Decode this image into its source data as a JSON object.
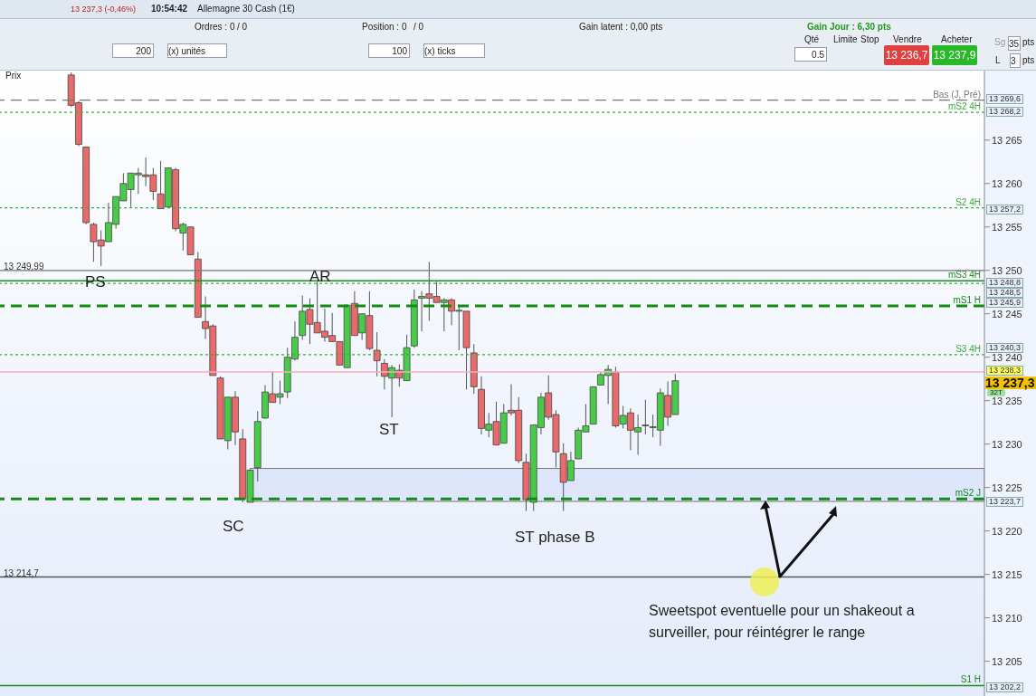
{
  "chart_data": {
    "type": "candlestick",
    "title": "Allemagne 30 Cash (1€)",
    "subtitle": "13 237,3 (-0,46%)",
    "categories": [
      null,
      null,
      null,
      null,
      null,
      null,
      null,
      null,
      null,
      null,
      null,
      null,
      null,
      null,
      null,
      null,
      null,
      null,
      null,
      null,
      null,
      null,
      null,
      null,
      null,
      null,
      null,
      null,
      null,
      null,
      null,
      null,
      null,
      null,
      null,
      null,
      null,
      null,
      null,
      null,
      null,
      null,
      null,
      null,
      null,
      null,
      null,
      null,
      null,
      null,
      null,
      null,
      null,
      null,
      null,
      null,
      null,
      null,
      null,
      null,
      null,
      null,
      null,
      null,
      null,
      null,
      null,
      null,
      null,
      null,
      null,
      null,
      null,
      null,
      null,
      null,
      null,
      null,
      null,
      null,
      null,
      null,
      null,
      null,
      null,
      null,
      null,
      null,
      null,
      null,
      null,
      null,
      null,
      null,
      null,
      null,
      null,
      null,
      null,
      null,
      null,
      null,
      null,
      null,
      null,
      null,
      null,
      null,
      null,
      null,
      null,
      null,
      null,
      null,
      null,
      null,
      null,
      null,
      null,
      null,
      null,
      null,
      null,
      null,
      null,
      null,
      null,
      null,
      null,
      null,
      null,
      null
    ],
    "ohlc": [
      null,
      null,
      null,
      null,
      null,
      null,
      null,
      null,
      null,
      [
        13272.5,
        13272.8,
        13268.8,
        13269.0
      ],
      [
        13269.3,
        13269.5,
        13264.3,
        13264.5
      ],
      [
        13264.2,
        13264.2,
        13255.3,
        13255.5
      ],
      [
        13255.3,
        13255.5,
        13251.0,
        13253.3
      ],
      [
        13253.5,
        13254.6,
        13250.5,
        13252.8
      ],
      [
        13253.3,
        13257.8,
        13253.3,
        13255.5
      ],
      [
        13255.3,
        13258.5,
        13254.8,
        13258.5
      ],
      [
        13258.0,
        13261.2,
        13258.0,
        13260.0
      ],
      [
        13259.3,
        13261.2,
        13257.3,
        13261.2
      ],
      [
        13261.0,
        13261.8,
        13258.8,
        13261.2
      ],
      [
        13261.0,
        13263.0,
        13259.7,
        13260.8
      ],
      [
        13261.0,
        13261.8,
        13258.1,
        13259.1
      ],
      [
        13258.8,
        13262.6,
        13257.1,
        13257.1
      ],
      [
        13257.3,
        13261.8,
        13257.3,
        13261.8
      ],
      [
        13261.6,
        13261.8,
        13254.5,
        13254.8
      ],
      [
        13254.3,
        13255.5,
        13252.3,
        13255.3
      ],
      [
        13255.0,
        13255.0,
        13251.8,
        13251.8
      ],
      [
        13251.3,
        13252.1,
        13244.6,
        13244.6
      ],
      [
        13244.1,
        13247.0,
        13242.1,
        13243.3
      ],
      [
        13243.6,
        13243.8,
        13237.9,
        13237.9
      ],
      [
        13237.6,
        13237.8,
        13230.6,
        13230.6
      ],
      [
        13230.4,
        13235.4,
        13229.4,
        13235.4
      ],
      [
        13235.4,
        13236.1,
        13229.9,
        13231.4
      ],
      [
        13230.6,
        13231.7,
        13223.3,
        13223.7
      ],
      [
        13223.3,
        13227.0,
        13223.3,
        13227.0
      ],
      [
        13227.3,
        13233.8,
        13225.7,
        13232.6
      ],
      [
        13233.0,
        13236.8,
        13232.9,
        13236.0
      ],
      [
        13235.8,
        13238.4,
        13234.8,
        13234.8
      ],
      [
        13235.4,
        13237.3,
        13234.6,
        13235.8
      ],
      [
        13236.0,
        13241.1,
        13235.3,
        13240.0
      ],
      [
        13239.8,
        13244.1,
        13239.6,
        13242.3
      ],
      [
        13242.5,
        13247.1,
        13242.0,
        13245.3
      ],
      [
        13245.5,
        13246.8,
        13241.5,
        13243.8
      ],
      [
        13244.0,
        13248.7,
        13242.8,
        13242.8
      ],
      [
        13243.0,
        13245.6,
        13241.8,
        13242.3
      ],
      [
        13242.5,
        13245.1,
        13241.8,
        13241.8
      ],
      [
        13241.8,
        13241.8,
        13239.1,
        13239.1
      ],
      [
        13238.8,
        13246.0,
        13238.8,
        13246.0
      ],
      [
        13246.2,
        13247.6,
        13242.5,
        13242.5
      ],
      [
        13242.8,
        13245.0,
        13242.0,
        13245.0
      ],
      [
        13244.8,
        13247.6,
        13240.8,
        13241.0
      ],
      [
        13240.8,
        13242.9,
        13237.8,
        13239.6
      ],
      [
        13239.3,
        13239.8,
        13236.3,
        13237.8
      ],
      [
        13237.6,
        13239.1,
        13233.1,
        13238.8
      ],
      [
        13238.5,
        13239.2,
        13236.6,
        13237.6
      ],
      [
        13237.3,
        13242.6,
        13237.3,
        13241.1
      ],
      [
        13241.3,
        13247.8,
        13241.1,
        13246.6
      ],
      [
        13246.8,
        13247.6,
        13243.0,
        13247.0
      ],
      [
        13247.3,
        13251.0,
        13244.2,
        13246.8
      ],
      [
        13247.0,
        13248.7,
        13246.3,
        13246.3
      ],
      [
        13246.3,
        13246.8,
        13243.0,
        13246.6
      ],
      [
        13246.6,
        13246.8,
        13243.7,
        13245.3
      ],
      [
        13245.3,
        13246.0,
        13240.8,
        13245.3
      ],
      [
        13245.3,
        13245.3,
        13236.3,
        13241.1
      ],
      [
        13240.5,
        13241.5,
        13235.8,
        13236.6
      ],
      [
        13236.3,
        13237.8,
        13231.1,
        13231.8
      ],
      [
        13231.6,
        13233.6,
        13230.8,
        13232.3
      ],
      [
        13232.6,
        13234.9,
        13229.9,
        13229.9
      ],
      [
        13230.1,
        13234.6,
        13230.1,
        13233.6
      ],
      [
        13233.9,
        13236.9,
        13233.3,
        13233.6
      ],
      [
        13233.9,
        13235.4,
        13227.8,
        13228.1
      ],
      [
        13227.9,
        13228.9,
        13222.3,
        13223.6
      ],
      [
        13223.3,
        13232.2,
        13222.3,
        13232.2
      ],
      [
        13231.9,
        13235.9,
        13231.1,
        13235.4
      ],
      [
        13235.9,
        13237.9,
        13232.8,
        13233.1
      ],
      [
        13233.4,
        13233.9,
        13227.3,
        13229.1
      ],
      [
        13228.9,
        13230.1,
        13222.3,
        13225.6
      ],
      [
        13225.8,
        13229.1,
        13225.8,
        13228.1
      ],
      [
        13228.3,
        13231.9,
        13228.3,
        13231.6
      ],
      [
        13231.4,
        13234.6,
        13231.4,
        13232.1
      ],
      [
        13232.3,
        13236.6,
        13232.3,
        13236.6
      ],
      [
        13236.8,
        13238.3,
        13236.8,
        13238.0
      ],
      [
        13237.9,
        13239.1,
        13234.6,
        13238.6
      ],
      [
        13238.3,
        13238.9,
        13231.9,
        13232.1
      ],
      [
        13232.3,
        13234.4,
        13231.8,
        13233.3
      ],
      [
        13233.6,
        13234.1,
        13229.3,
        13231.6
      ],
      [
        13231.4,
        13233.4,
        13228.8,
        13231.9
      ],
      [
        13232.1,
        13235.1,
        13231.1,
        13232.1
      ],
      [
        13231.9,
        13233.4,
        13230.8,
        13231.9
      ],
      [
        13231.6,
        13236.4,
        13229.8,
        13235.9
      ],
      [
        13235.6,
        13237.2,
        13232.1,
        13233.1
      ],
      [
        13233.4,
        13238.1,
        13233.4,
        13237.3
      ],
      null,
      null,
      null,
      null,
      null,
      null,
      null,
      null,
      null,
      null,
      null,
      null,
      null,
      null,
      null,
      null,
      null,
      null,
      null,
      null,
      null,
      null,
      null,
      null,
      null,
      null,
      null,
      null,
      null,
      null,
      null,
      null,
      null,
      null,
      null,
      null,
      null,
      null,
      null,
      null,
      null
    ],
    "ylim": [
      13201,
      13273
    ],
    "yticks": [
      {
        "value": 13205,
        "label": "13 205"
      },
      {
        "value": 13210,
        "label": "13 210"
      },
      {
        "value": 13215,
        "label": "13 215"
      },
      {
        "value": 13220,
        "label": "13 220"
      },
      {
        "value": 13225,
        "label": "13 225"
      },
      {
        "value": 13230,
        "label": "13 230"
      },
      {
        "value": 13235,
        "label": "13 235"
      },
      {
        "value": 13240,
        "label": "13 240"
      },
      {
        "value": 13245,
        "label": "13 245"
      },
      {
        "value": 13250,
        "label": "13 250"
      },
      {
        "value": 13255,
        "label": "13 255"
      },
      {
        "value": 13260,
        "label": "13 260"
      },
      {
        "value": 13265,
        "label": "13 265"
      }
    ],
    "tick_labels": "y",
    "ref_lines": [
      {
        "axis": "y",
        "value": 13269.6,
        "label": "Bas (J, Pré)",
        "color": "#777777",
        "line_style": "dashed"
      },
      {
        "axis": "y",
        "value": 13268.2,
        "label": "mS2 4H",
        "color": "#3aaa3a",
        "line_style": "dotted"
      },
      {
        "axis": "y",
        "value": 13257.2,
        "label": "S2 4H",
        "color": "#3aaa3a",
        "line_style": "dotted"
      },
      {
        "axis": "y",
        "value": 13249.99,
        "color": "#777777",
        "line_style": "solid"
      },
      {
        "axis": "y",
        "value": 13248.8,
        "label": "mS3 4H",
        "color": "#1e8c1e",
        "line_style": "solid"
      },
      {
        "axis": "y",
        "value": 13248.5,
        "color": "#3aaa3a",
        "line_style": "dotted"
      },
      {
        "axis": "y",
        "value": 13245.9,
        "label": "mS1 H",
        "color": "#138a13",
        "line_style": "dashed"
      },
      {
        "axis": "y",
        "value": 13240.3,
        "label": "S3 4H",
        "color": "#3aaa3a",
        "line_style": "dotted"
      },
      {
        "axis": "y",
        "value": 13238.3,
        "color": "#f2b0b8",
        "line_style": "solid"
      },
      {
        "axis": "y",
        "value": 13223.7,
        "label": "mS2 J",
        "color": "#138a13",
        "line_style": "dashed"
      },
      {
        "axis": "y",
        "value": 13214.7,
        "color": "#555555",
        "line_style": "solid"
      },
      {
        "axis": "y",
        "value": 13202.2,
        "label": "S1 H",
        "color": "#1e8c1e",
        "line_style": "solid"
      }
    ],
    "bands": [
      {
        "axis": "y",
        "from": 13223.4,
        "to": 13227.2,
        "color": "#dde6fa"
      }
    ],
    "annotations": [
      "10:54:42",
      "Ordres : 0",
      "/ 0",
      "Position : 0",
      "/ 0",
      "Gain latent : 0,00 pts",
      "Gain Jour : 6,30 pts",
      "200",
      "(x) unités",
      "100",
      "(x) ticks",
      "Qté",
      "0.5",
      "Limite",
      "Stop",
      "Vendre",
      "Acheter",
      "13 236,7",
      "13 237,9",
      "Sg",
      "35",
      "pts",
      "L",
      "3",
      "pts",
      "Prix",
      "32T",
      "PS",
      "AR",
      "ST",
      "SC",
      "ST phase B",
      "Sweetspot eventuelle pour un shakeout a surveiller, pour réintégrer le range",
      "13 269,6",
      "13 268,2",
      "13 257,2",
      "13 249,99",
      "13 248,8",
      "13 248,5",
      "13 245,9",
      "13 240,3",
      "13 238,3",
      "13 237,3",
      "13 223,7",
      "13 214,7",
      "13 202,2"
    ]
  }
}
